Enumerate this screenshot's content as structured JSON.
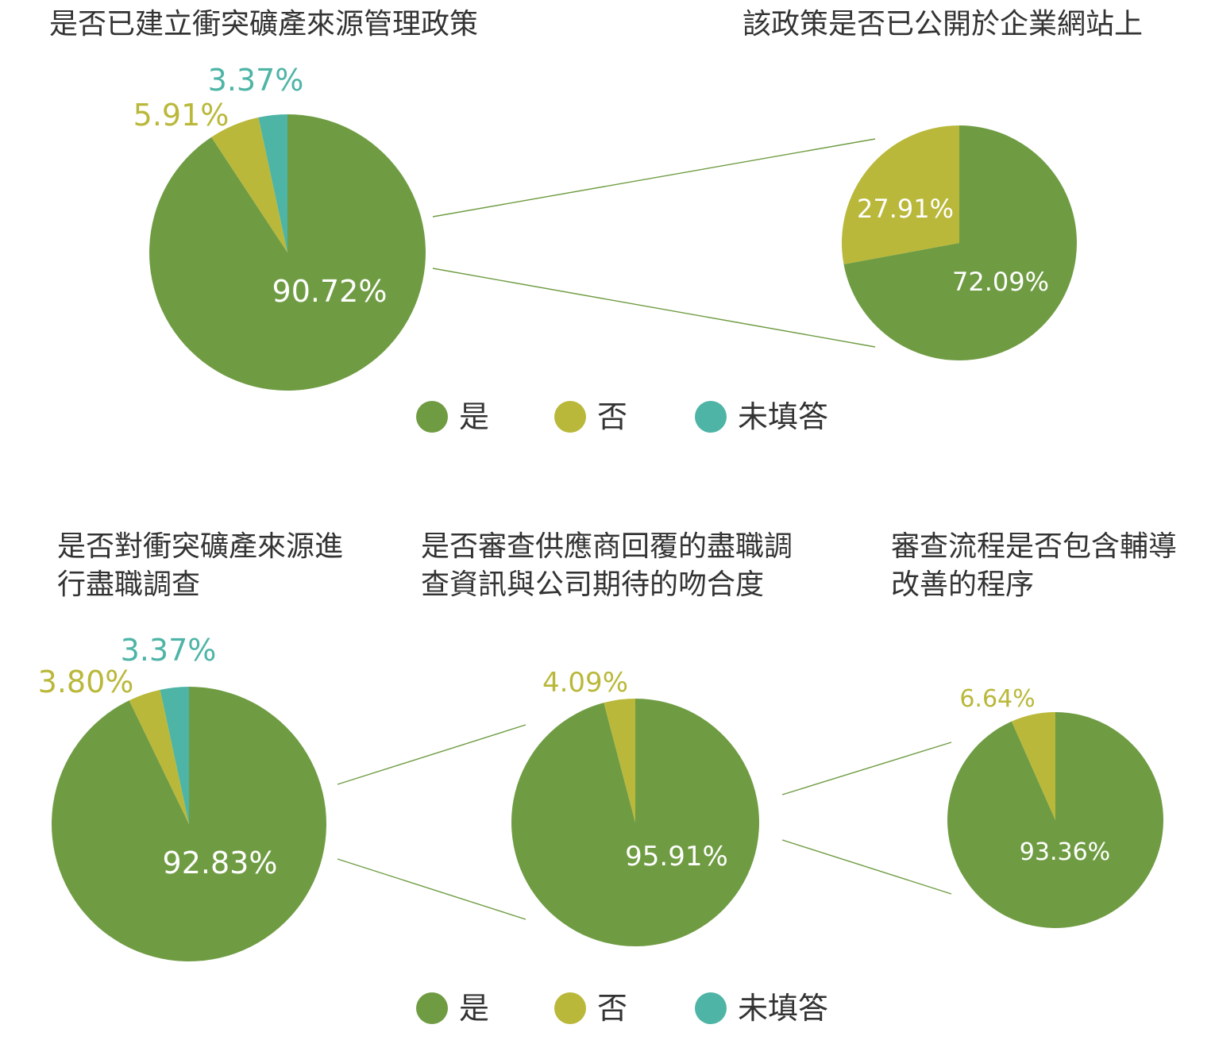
{
  "colors": {
    "yes": "#6f9c43",
    "no": "#b9b83a",
    "blank": "#4db4a6"
  },
  "legends": [
    {
      "items": [
        {
          "key": "yes",
          "label": "是"
        },
        {
          "key": "no",
          "label": "否"
        },
        {
          "key": "blank",
          "label": "未填答"
        }
      ]
    },
    {
      "items": [
        {
          "key": "yes",
          "label": "是"
        },
        {
          "key": "no",
          "label": "否"
        },
        {
          "key": "blank",
          "label": "未填答"
        }
      ]
    }
  ],
  "chart_data": [
    {
      "type": "pie",
      "title_lines": [
        "是否已建立衝突礦產來源管理政策"
      ],
      "slices": [
        {
          "key": "yes",
          "label": "是",
          "value": 90.72,
          "value_label": "90.72%"
        },
        {
          "key": "no",
          "label": "否",
          "value": 5.91,
          "value_label": "5.91%"
        },
        {
          "key": "blank",
          "label": "未填答",
          "value": 3.37,
          "value_label": "3.37%"
        }
      ]
    },
    {
      "type": "pie",
      "title_lines": [
        "該政策是否已公開於企業網站上"
      ],
      "slices": [
        {
          "key": "yes",
          "label": "是",
          "value": 72.09,
          "value_label": "72.09%"
        },
        {
          "key": "no",
          "label": "否",
          "value": 27.91,
          "value_label": "27.91%"
        }
      ]
    },
    {
      "type": "pie",
      "title_lines": [
        "是否對衝突礦產來源進",
        "行盡職調查"
      ],
      "slices": [
        {
          "key": "yes",
          "label": "是",
          "value": 92.83,
          "value_label": "92.83%"
        },
        {
          "key": "no",
          "label": "否",
          "value": 3.8,
          "value_label": "3.80%"
        },
        {
          "key": "blank",
          "label": "未填答",
          "value": 3.37,
          "value_label": "3.37%"
        }
      ]
    },
    {
      "type": "pie",
      "title_lines": [
        "是否審查供應商回覆的盡職調",
        "查資訊與公司期待的吻合度"
      ],
      "slices": [
        {
          "key": "yes",
          "label": "是",
          "value": 95.91,
          "value_label": "95.91%"
        },
        {
          "key": "no",
          "label": "否",
          "value": 4.09,
          "value_label": "4.09%"
        }
      ]
    },
    {
      "type": "pie",
      "title_lines": [
        "審查流程是否包含輔導",
        "改善的程序"
      ],
      "slices": [
        {
          "key": "yes",
          "label": "是",
          "value": 93.36,
          "value_label": "93.36%"
        },
        {
          "key": "no",
          "label": "否",
          "value": 6.64,
          "value_label": "6.64%"
        }
      ]
    }
  ]
}
